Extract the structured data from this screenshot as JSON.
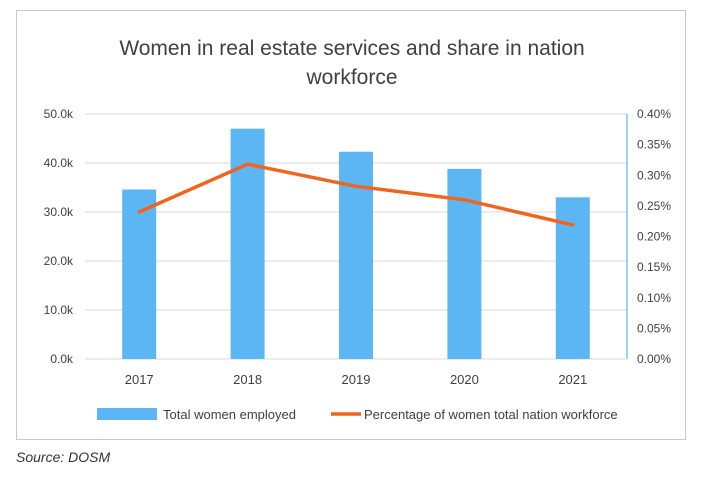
{
  "chart_data": {
    "type": "bar+line",
    "title_lines": [
      "Women in real estate services and share in nation",
      "workforce"
    ],
    "categories": [
      "2017",
      "2018",
      "2019",
      "2020",
      "2021"
    ],
    "series": [
      {
        "name": "Total women employed",
        "type": "bar",
        "axis": "left",
        "color": "#5DB6F4",
        "values": [
          34600,
          47000,
          42300,
          38800,
          33000
        ]
      },
      {
        "name": "Percentage of women total nation workforce",
        "type": "line",
        "axis": "right",
        "color": "#F0641E",
        "values": [
          0.24,
          0.318,
          0.282,
          0.26,
          0.219
        ]
      }
    ],
    "y_left": {
      "min": 0,
      "max": 50000,
      "ticks": [
        0,
        10000,
        20000,
        30000,
        40000,
        50000
      ],
      "tick_labels": [
        "0.0k",
        "10.0k",
        "20.0k",
        "30.0k",
        "40.0k",
        "50.0k"
      ]
    },
    "y_right": {
      "min": 0,
      "max": 0.4,
      "ticks": [
        0,
        0.05,
        0.1,
        0.15,
        0.2,
        0.25,
        0.3,
        0.35,
        0.4
      ],
      "tick_labels": [
        "0.00%",
        "0.05%",
        "0.10%",
        "0.15%",
        "0.20%",
        "0.25%",
        "0.30%",
        "0.35%",
        "0.40%"
      ]
    },
    "grid": true,
    "legend_position": "bottom",
    "right_axis_color": "#5DB6F4"
  },
  "source": "Source: DOSM"
}
